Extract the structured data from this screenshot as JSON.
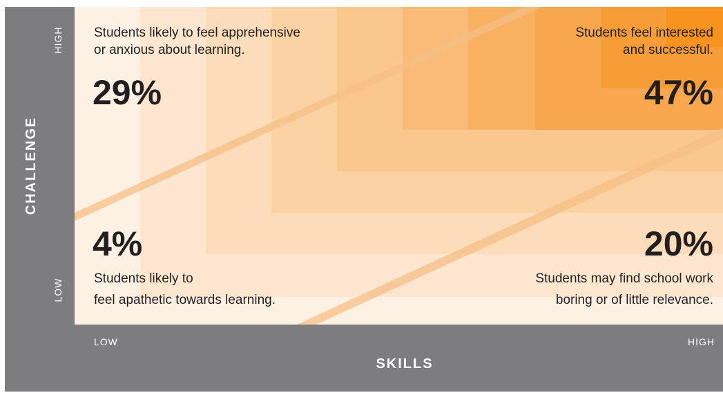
{
  "axes": {
    "y_title": "CHALLENGE",
    "y_high": "HIGH",
    "y_low": "LOW",
    "x_title": "SKILLS",
    "x_low": "LOW",
    "x_high": "HIGH"
  },
  "quadrants": [
    {
      "percent": "29%",
      "text_1": "Students likely to feel apprehensive",
      "text_2": "or anxious about learning."
    },
    {
      "percent": "47%",
      "text_1": "Students feel interested",
      "text_2": "and successful."
    },
    {
      "percent": "4%",
      "text_1": "Students likely to",
      "text_2": "feel apathetic towards learning."
    },
    {
      "percent": "20%",
      "text_1": "Students may find school work",
      "text_2": "boring or of little relevance."
    }
  ]
}
